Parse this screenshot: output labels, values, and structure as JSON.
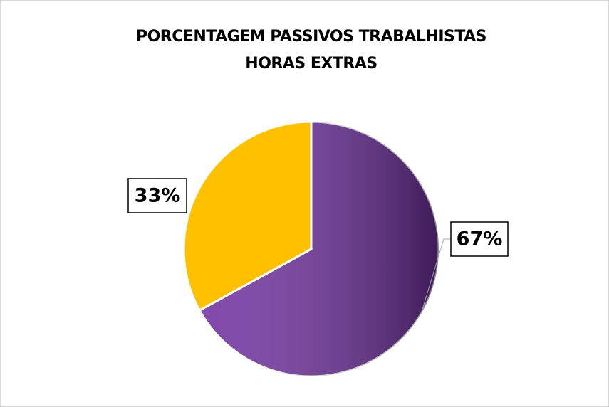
{
  "chart_data": {
    "type": "pie",
    "title": [
      "PORCENTAGEM PASSIVOS TRABALHISTAS",
      "HORAS EXTRAS"
    ],
    "values": [
      67,
      33
    ],
    "value_labels": [
      "67%",
      "33%"
    ],
    "colors": [
      "#7030a0",
      "#ffc000"
    ]
  }
}
